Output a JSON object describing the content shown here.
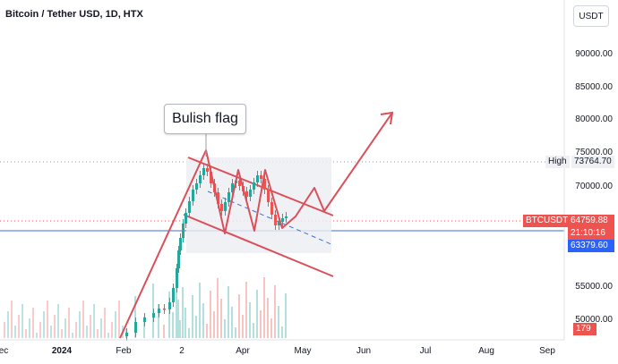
{
  "title": "Bitcoin / Tether USD, 1D, HTX",
  "currency": "USDT",
  "annotation": "Bulish flag",
  "colors": {
    "up": "#26a69a",
    "down": "#ef5350",
    "drawing": "#d9505a",
    "flag_fill": "#eceef2",
    "guide": "#3b6fd1"
  },
  "price_axis": {
    "ticks": [
      "90000.00",
      "85000.00",
      "80000.00",
      "75000.00",
      "70000.00",
      "55000.00",
      "50000.00"
    ]
  },
  "time_axis": {
    "ticks": [
      {
        "label": "ec",
        "bold": false
      },
      {
        "label": "2024",
        "bold": true
      },
      {
        "label": "Feb",
        "bold": false
      },
      {
        "label": "2",
        "bold": false
      },
      {
        "label": "Apr",
        "bold": false
      },
      {
        "label": "May",
        "bold": false
      },
      {
        "label": "Jun",
        "bold": false
      },
      {
        "label": "Jul",
        "bold": false
      },
      {
        "label": "Aug",
        "bold": false
      },
      {
        "label": "Sep",
        "bold": false
      }
    ]
  },
  "markers": {
    "high_label": "High",
    "high_value": "73764.70",
    "symbol_label": "BTCUSDT",
    "last_price": "64759.88",
    "countdown": "21:10:16",
    "line_price": "63379.60",
    "volume": "179"
  }
}
